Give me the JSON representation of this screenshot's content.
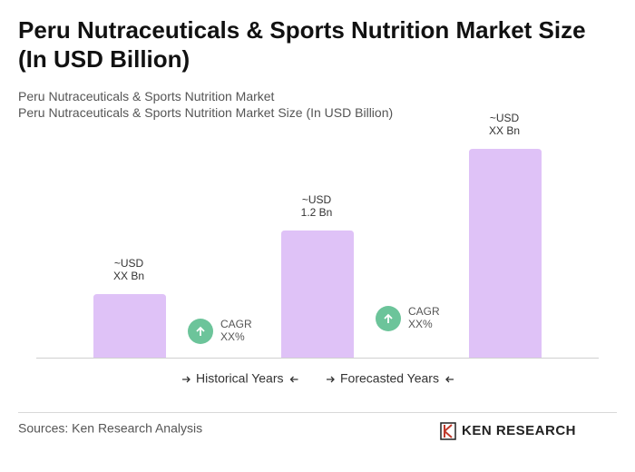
{
  "chart_data": {
    "type": "bar",
    "title": "Peru Nutraceuticals & Sports Nutrition Market Size (In USD Billion)",
    "subtitle": "Peru Nutraceuticals & Sports Nutrition Market",
    "subtitle2": "Peru Nutraceuticals & Sports Nutrition Market Size (In USD Billion)",
    "categories": [
      null,
      null,
      null
    ],
    "values": [
      0.6,
      1.2,
      1.97
    ],
    "value_labels": [
      [
        "~USD",
        "XX Bn"
      ],
      [
        "~USD",
        "1.2 Bn"
      ],
      [
        "~USD",
        "XX Bn"
      ]
    ],
    "color": "#dfc2f7",
    "annotations": [
      {
        "label": "CAGR",
        "value": "XX%"
      },
      {
        "label": "CAGR",
        "value": "XX%"
      }
    ],
    "legend": [
      "Historical Years",
      "Forecasted Years"
    ],
    "source": "Sources: Ken Research Analysis",
    "logo": "KEN RESEARCH"
  }
}
